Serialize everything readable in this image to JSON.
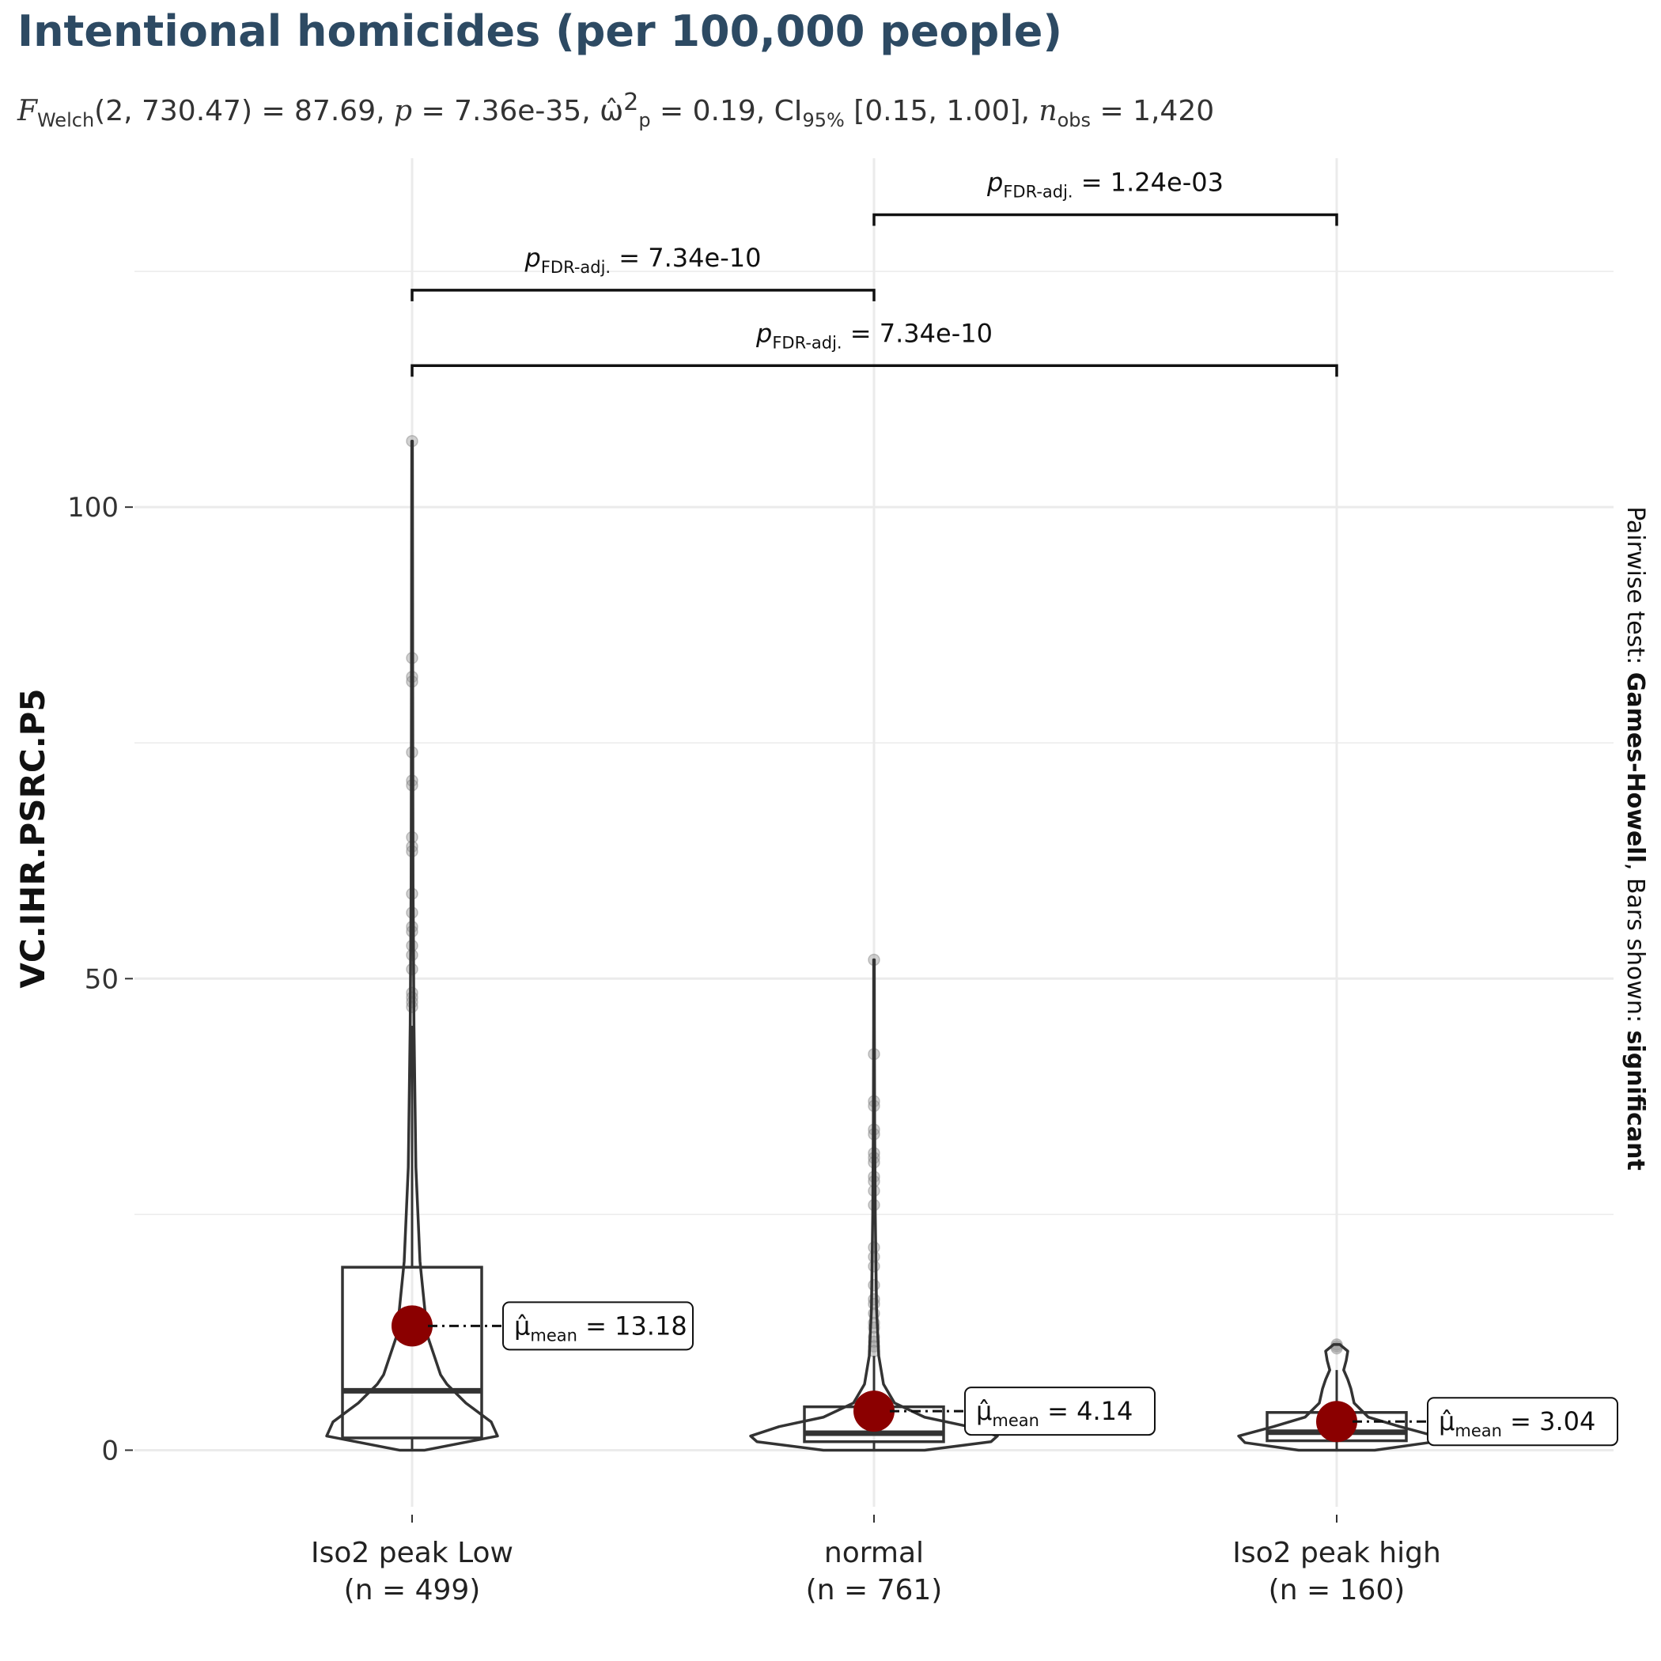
{
  "title": "Intentional homicides (per 100,000 people)",
  "subtitle": {
    "f_sym": "F",
    "f_sub": "Welch",
    "f_args": "(2, 730.47) = 87.69, ",
    "p_sym": "p",
    "p_val": " = 7.36e-35, ",
    "omega_sym": "ω̂",
    "omega_sub": "p",
    "omega_sup": "2",
    "omega_val": " = 0.19, CI",
    "ci_sub": "95%",
    "ci_val": " [0.15, 1.00], ",
    "n_sym": "n",
    "n_sub": "obs",
    "n_val": " = 1,420"
  },
  "caption": {
    "prefix": "Pairwise test: ",
    "test": "Games-Howell",
    "mid": ", Bars shown: ",
    "shown": "significant"
  },
  "colors": {
    "title": "#2d4a63",
    "mean_point": "#8b0000",
    "outline": "#333333",
    "points": "#999999",
    "grid": "#ebebeb"
  },
  "chart_data": {
    "type": "box-violin",
    "ylabel": "VC.IHR.PSRC.P5",
    "ylim": [
      -6,
      137
    ],
    "yticks": [
      0,
      50,
      100
    ],
    "grid": true,
    "categories": [
      {
        "label": "Iso2 peak  Low",
        "n_label": "(n = 499)",
        "box": {
          "q1": 1.3,
          "median": 6.3,
          "q3": 19.4,
          "whisker_low": 0,
          "whisker_high": 45
        },
        "mean": 13.18,
        "mean_label": "13.18",
        "violin": [
          [
            0,
            0.4
          ],
          [
            1.5,
            2.7
          ],
          [
            3,
            2.5
          ],
          [
            5,
            1.7
          ],
          [
            7,
            1.1
          ],
          [
            8,
            0.9
          ],
          [
            10,
            0.7
          ],
          [
            12,
            0.5
          ],
          [
            15,
            0.4
          ],
          [
            20,
            0.25
          ],
          [
            30,
            0.12
          ],
          [
            45,
            0.06
          ],
          [
            60,
            0.03
          ],
          [
            80,
            0.02
          ],
          [
            95,
            0.015
          ],
          [
            107,
            0.01
          ]
        ],
        "outliers": [
          107,
          84,
          82,
          81.5,
          74,
          71,
          70.5,
          65,
          64,
          63.5,
          59,
          57,
          55.5,
          55,
          53.5,
          52.5,
          51,
          48.5,
          48,
          47.5,
          47
        ]
      },
      {
        "label": "normal",
        "n_label": "(n = 761)",
        "box": {
          "q1": 0.9,
          "median": 1.8,
          "q3": 4.6,
          "whisker_low": 0,
          "whisker_high": 10
        },
        "mean": 4.14,
        "mean_label": "4.14",
        "violin": [
          [
            0,
            1.6
          ],
          [
            0.9,
            3.7
          ],
          [
            1.5,
            3.9
          ],
          [
            2.5,
            3.0
          ],
          [
            3.5,
            1.6
          ],
          [
            5,
            0.65
          ],
          [
            7,
            0.3
          ],
          [
            10,
            0.15
          ],
          [
            15,
            0.08
          ],
          [
            25,
            0.04
          ],
          [
            35,
            0.02
          ],
          [
            45,
            0.012
          ],
          [
            52,
            0.01
          ]
        ],
        "outliers": [
          52,
          42,
          37,
          36.5,
          34,
          33.5,
          31.5,
          31,
          30.5,
          29,
          28.5,
          27.5,
          26,
          21.5,
          20.5,
          19.5,
          17.5,
          16,
          15.5,
          14.5,
          13.5,
          13,
          12,
          11.5,
          11,
          10.5
        ]
      },
      {
        "label": "Iso2 peak  high",
        "n_label": "(n = 160)",
        "box": {
          "q1": 1.0,
          "median": 1.9,
          "q3": 4.0,
          "whisker_low": 0,
          "whisker_high": 8.5
        },
        "mean": 3.04,
        "mean_label": "3.04",
        "violin": [
          [
            0,
            1.2
          ],
          [
            0.8,
            2.9
          ],
          [
            1.5,
            3.1
          ],
          [
            2.5,
            2.0
          ],
          [
            3.5,
            1.0
          ],
          [
            5,
            0.55
          ],
          [
            6.5,
            0.45
          ],
          [
            7.5,
            0.35
          ],
          [
            8.5,
            0.22
          ],
          [
            9.5,
            0.3
          ],
          [
            10.5,
            0.35
          ],
          [
            11.2,
            0.1
          ]
        ],
        "outliers": [
          11.2,
          11,
          10.8
        ]
      }
    ],
    "mean_label_prefix": "μ̂",
    "mean_label_sub": "mean",
    "mean_label_eq": " = ",
    "comparisons": [
      {
        "from": 1,
        "to": 2,
        "p_sym": "p",
        "p_sub": "FDR-adj.",
        "p_eq": " = ",
        "p_value": "1.24e-03",
        "y": 131
      },
      {
        "from": 0,
        "to": 1,
        "p_sym": "p",
        "p_sub": "FDR-adj.",
        "p_eq": " = ",
        "p_value": "7.34e-10",
        "y": 123
      },
      {
        "from": 0,
        "to": 2,
        "p_sym": "p",
        "p_sub": "FDR-adj.",
        "p_eq": " = ",
        "p_value": "7.34e-10",
        "y": 115
      }
    ]
  }
}
